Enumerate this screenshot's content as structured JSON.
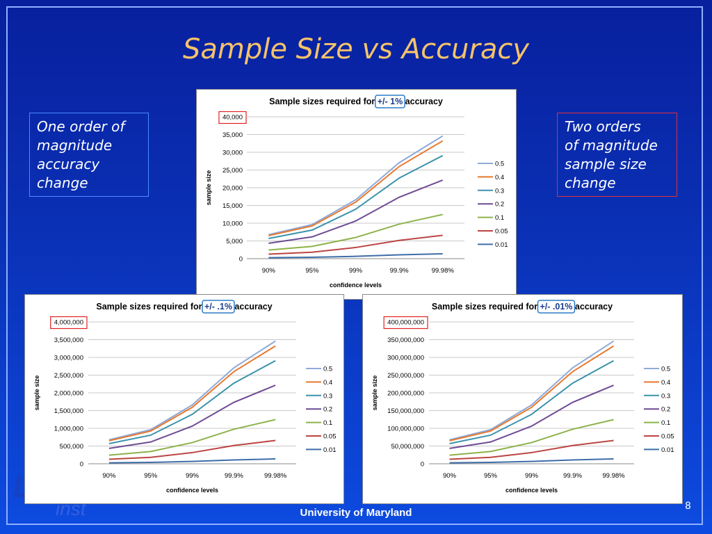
{
  "slide": {
    "title": "Sample Size vs Accuracy",
    "note_left": "One order of\nmagnitude\naccuracy\nchange",
    "note_right": "Two orders\nof magnitude\nsample size\nchange",
    "footer": "University of Maryland",
    "page_number": "8",
    "logo_fragment": "L",
    "inst_fragment": "inst"
  },
  "colors": {
    "0.5": "#8eaad8",
    "0.4": "#e8782e",
    "0.3": "#3b92ab",
    "0.2": "#6e4a93",
    "0.1": "#8db24a",
    "0.05": "#bc4442",
    "0.01": "#3e6da8"
  },
  "chart_data": [
    {
      "type": "line",
      "title_prefix": "Sample sizes required for ",
      "title_highlight": "+/- 1%",
      "title_suffix": " accuracy",
      "xlabel": "confidence levels",
      "ylabel": "sample size",
      "categories": [
        "90%",
        "95%",
        "99%",
        "99.9%",
        "99.98%"
      ],
      "ylim": [
        0,
        40000
      ],
      "yticks": [
        "0",
        "5,000",
        "10,000",
        "15,000",
        "20,000",
        "25,000",
        "30,000",
        "35,000",
        "40,000"
      ],
      "legend_position": "right",
      "series": [
        {
          "name": "0.5",
          "values": [
            6765,
            9604,
            16590,
            27060,
            34600
          ]
        },
        {
          "name": "0.4",
          "values": [
            6494,
            9220,
            15926,
            25978,
            33216
          ]
        },
        {
          "name": "0.3",
          "values": [
            5683,
            8067,
            13936,
            22730,
            29064
          ]
        },
        {
          "name": "0.2",
          "values": [
            4330,
            6147,
            10618,
            17318,
            22144
          ]
        },
        {
          "name": "0.1",
          "values": [
            2436,
            3457,
            5972,
            9742,
            12456
          ]
        },
        {
          "name": "0.05",
          "values": [
            1285,
            1825,
            3152,
            5141,
            6574
          ]
        },
        {
          "name": "0.01",
          "values": [
            268,
            380,
            657,
            1071,
            1370
          ]
        }
      ]
    },
    {
      "type": "line",
      "title_prefix": "Sample sizes required for ",
      "title_highlight": "+/- .1%",
      "title_suffix": " accuracy",
      "xlabel": "confidence levels",
      "ylabel": "sample size",
      "categories": [
        "90%",
        "95%",
        "99%",
        "99.9%",
        "99.98%"
      ],
      "ylim": [
        0,
        4000000
      ],
      "yticks": [
        "0",
        "500,000",
        "1,000,000",
        "1,500,000",
        "2,000,000",
        "2,500,000",
        "3,000,000",
        "3,500,000",
        "4,000,000"
      ],
      "legend_position": "right",
      "series": [
        {
          "name": "0.5",
          "values": [
            676500,
            960400,
            1659000,
            2706000,
            3460000
          ]
        },
        {
          "name": "0.4",
          "values": [
            649400,
            922000,
            1592600,
            2597800,
            3321600
          ]
        },
        {
          "name": "0.3",
          "values": [
            568300,
            806700,
            1393600,
            2273000,
            2906400
          ]
        },
        {
          "name": "0.2",
          "values": [
            433000,
            614700,
            1061800,
            1731800,
            2214400
          ]
        },
        {
          "name": "0.1",
          "values": [
            243600,
            345700,
            597200,
            974200,
            1245600
          ]
        },
        {
          "name": "0.05",
          "values": [
            128500,
            182500,
            315200,
            514100,
            657400
          ]
        },
        {
          "name": "0.01",
          "values": [
            26800,
            38000,
            65700,
            107100,
            137000
          ]
        }
      ]
    },
    {
      "type": "line",
      "title_prefix": "Sample sizes required for ",
      "title_highlight": "+/- .01%",
      "title_suffix": " accuracy",
      "xlabel": "confidence levels",
      "ylabel": "sample size",
      "categories": [
        "90%",
        "95%",
        "99%",
        "99.9%",
        "99.98%"
      ],
      "ylim": [
        0,
        400000000
      ],
      "yticks": [
        "0",
        "50,000,000",
        "100,000,000",
        "150,000,000",
        "200,000,000",
        "250,000,000",
        "300,000,000",
        "350,000,000",
        "400,000,000"
      ],
      "legend_position": "right",
      "series": [
        {
          "name": "0.5",
          "values": [
            67650000,
            96040000,
            165900000,
            270600000,
            346000000
          ]
        },
        {
          "name": "0.4",
          "values": [
            64940000,
            92200000,
            159260000,
            259780000,
            332160000
          ]
        },
        {
          "name": "0.3",
          "values": [
            56830000,
            80670000,
            139360000,
            227300000,
            290640000
          ]
        },
        {
          "name": "0.2",
          "values": [
            43300000,
            61470000,
            106180000,
            173180000,
            221440000
          ]
        },
        {
          "name": "0.1",
          "values": [
            24360000,
            34570000,
            59720000,
            97420000,
            124560000
          ]
        },
        {
          "name": "0.05",
          "values": [
            12850000,
            18250000,
            31520000,
            51410000,
            65740000
          ]
        },
        {
          "name": "0.01",
          "values": [
            2680000,
            3800000,
            6570000,
            10710000,
            13700000
          ]
        }
      ]
    }
  ]
}
